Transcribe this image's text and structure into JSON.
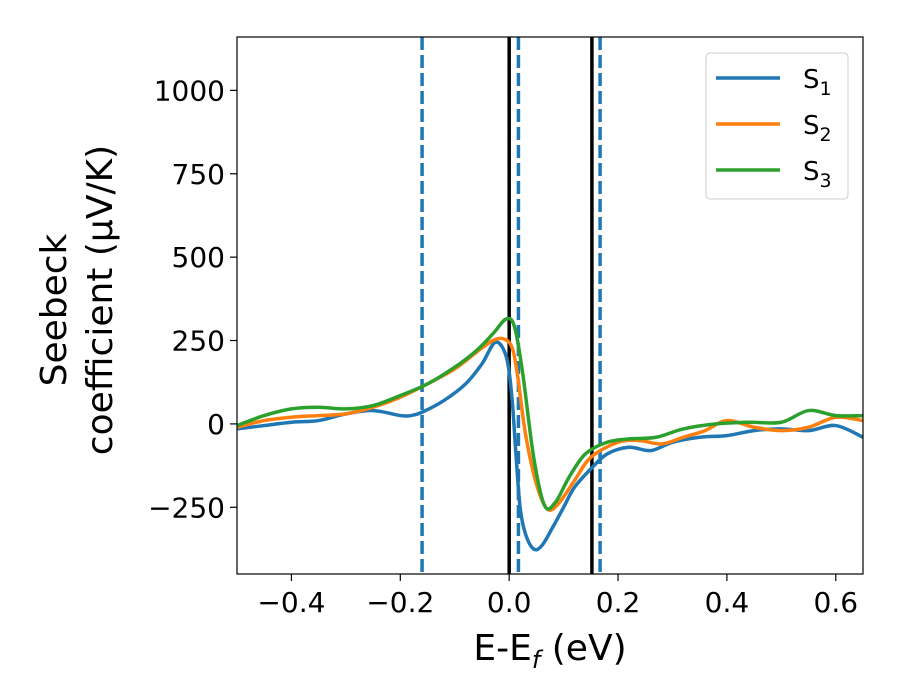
{
  "chart_data": {
    "type": "line",
    "xlabel": "E-E_f (eV)",
    "ylabel": "Seebeck coefficient (µV/K)",
    "ylabel_lines": [
      "Seebeck",
      "coefficient  (μV/K)"
    ],
    "xlabel_parts": {
      "main": "E-E",
      "sub": "f",
      "unit": " (eV)"
    },
    "xlim": [
      -0.5,
      0.65
    ],
    "ylim": [
      -450,
      1160
    ],
    "xticks": [
      -0.4,
      -0.2,
      0.0,
      0.2,
      0.4,
      0.6
    ],
    "xtick_labels": [
      "−0.4",
      "−0.2",
      "0.0",
      "0.2",
      "0.4",
      "0.6"
    ],
    "yticks": [
      -250,
      0,
      250,
      500,
      750,
      1000
    ],
    "ytick_labels": [
      "−250",
      "0",
      "250",
      "500",
      "750",
      "1000"
    ],
    "grid": false,
    "legend_position": "top-right",
    "vlines": [
      {
        "x": -0.16,
        "style": "dashed",
        "color": "#1f77b4"
      },
      {
        "x": 0.0,
        "style": "solid",
        "color": "#000000"
      },
      {
        "x": 0.017,
        "style": "dashed",
        "color": "#1f77b4"
      },
      {
        "x": 0.152,
        "style": "solid",
        "color": "#000000"
      },
      {
        "x": 0.167,
        "style": "dashed",
        "color": "#1f77b4"
      }
    ],
    "series": [
      {
        "name": "S1",
        "label_main": "S",
        "label_sub": "1",
        "color": "#1f77b4",
        "points": [
          [
            -0.5,
            -15
          ],
          [
            -0.45,
            -5
          ],
          [
            -0.4,
            5
          ],
          [
            -0.35,
            10
          ],
          [
            -0.3,
            30
          ],
          [
            -0.25,
            40
          ],
          [
            -0.2,
            25
          ],
          [
            -0.18,
            25
          ],
          [
            -0.16,
            35
          ],
          [
            -0.12,
            70
          ],
          [
            -0.08,
            120
          ],
          [
            -0.05,
            180
          ],
          [
            -0.025,
            245
          ],
          [
            -0.005,
            200
          ],
          [
            0.005,
            80
          ],
          [
            0.012,
            -80
          ],
          [
            0.02,
            -250
          ],
          [
            0.03,
            -330
          ],
          [
            0.045,
            -375
          ],
          [
            0.06,
            -365
          ],
          [
            0.08,
            -310
          ],
          [
            0.1,
            -250
          ],
          [
            0.12,
            -190
          ],
          [
            0.15,
            -135
          ],
          [
            0.18,
            -90
          ],
          [
            0.22,
            -70
          ],
          [
            0.26,
            -80
          ],
          [
            0.3,
            -55
          ],
          [
            0.35,
            -40
          ],
          [
            0.4,
            -35
          ],
          [
            0.45,
            -20
          ],
          [
            0.5,
            -15
          ],
          [
            0.55,
            -20
          ],
          [
            0.6,
            -5
          ],
          [
            0.65,
            -40
          ]
        ]
      },
      {
        "name": "S2",
        "label_main": "S",
        "label_sub": "2",
        "color": "#ff7f0e",
        "points": [
          [
            -0.5,
            -10
          ],
          [
            -0.45,
            10
          ],
          [
            -0.4,
            20
          ],
          [
            -0.35,
            25
          ],
          [
            -0.3,
            30
          ],
          [
            -0.25,
            50
          ],
          [
            -0.2,
            80
          ],
          [
            -0.15,
            120
          ],
          [
            -0.1,
            165
          ],
          [
            -0.06,
            215
          ],
          [
            -0.03,
            250
          ],
          [
            -0.01,
            255
          ],
          [
            0.005,
            230
          ],
          [
            0.015,
            150
          ],
          [
            0.03,
            -30
          ],
          [
            0.05,
            -180
          ],
          [
            0.07,
            -255
          ],
          [
            0.09,
            -240
          ],
          [
            0.12,
            -170
          ],
          [
            0.15,
            -100
          ],
          [
            0.2,
            -55
          ],
          [
            0.24,
            -50
          ],
          [
            0.28,
            -60
          ],
          [
            0.32,
            -40
          ],
          [
            0.36,
            -20
          ],
          [
            0.4,
            10
          ],
          [
            0.45,
            -10
          ],
          [
            0.5,
            -20
          ],
          [
            0.55,
            -10
          ],
          [
            0.6,
            20
          ],
          [
            0.65,
            10
          ]
        ]
      },
      {
        "name": "S3",
        "label_main": "S",
        "label_sub": "3",
        "color": "#2ca02c",
        "points": [
          [
            -0.5,
            -5
          ],
          [
            -0.45,
            25
          ],
          [
            -0.4,
            45
          ],
          [
            -0.35,
            50
          ],
          [
            -0.3,
            45
          ],
          [
            -0.25,
            55
          ],
          [
            -0.2,
            85
          ],
          [
            -0.15,
            120
          ],
          [
            -0.1,
            170
          ],
          [
            -0.06,
            220
          ],
          [
            -0.03,
            270
          ],
          [
            -0.005,
            315
          ],
          [
            0.01,
            290
          ],
          [
            0.025,
            150
          ],
          [
            0.045,
            -100
          ],
          [
            0.065,
            -245
          ],
          [
            0.085,
            -235
          ],
          [
            0.11,
            -160
          ],
          [
            0.14,
            -90
          ],
          [
            0.18,
            -55
          ],
          [
            0.22,
            -45
          ],
          [
            0.27,
            -40
          ],
          [
            0.32,
            -15
          ],
          [
            0.38,
            0
          ],
          [
            0.44,
            5
          ],
          [
            0.5,
            5
          ],
          [
            0.55,
            40
          ],
          [
            0.6,
            25
          ],
          [
            0.65,
            25
          ]
        ]
      }
    ]
  }
}
